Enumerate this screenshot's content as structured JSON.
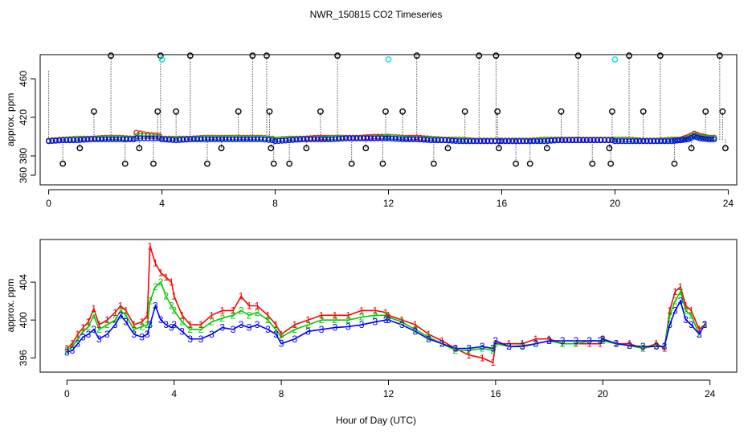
{
  "figure_title": "NWR_150815  CO2 Timeseries",
  "xlabel": "Hour of Day (UTC)",
  "colors": {
    "red": "#ff0000",
    "green": "#00cc00",
    "blue": "#0000ff",
    "black": "#000000",
    "cyan": "#00e5e5"
  },
  "chart_data": [
    {
      "type": "scatter",
      "panel": "top",
      "title": "",
      "ylabel": "approx. ppm",
      "xlim": [
        -0.3,
        24.3
      ],
      "ylim": [
        350,
        485
      ],
      "x_ticks": [
        0,
        4,
        8,
        12,
        16,
        20,
        24
      ],
      "x_tick_labels": [
        "0",
        "4",
        "8",
        "12",
        "16",
        "20",
        "24"
      ],
      "y_ticks": [
        360,
        380,
        420,
        460
      ],
      "y_tick_labels": [
        "360",
        "380",
        "420",
        "460"
      ],
      "baseline_series": [
        {
          "name": "red",
          "color": "#ff0000",
          "x": [
            0.0,
            0.5,
            1.0,
            1.5,
            2.0,
            2.5,
            3.0,
            3.1,
            3.5,
            3.9,
            4.0,
            4.5,
            5.0,
            5.5,
            6.0,
            6.5,
            7.0,
            7.5,
            7.9,
            8.0,
            8.5,
            9.0,
            9.5,
            10.0,
            10.5,
            11.0,
            11.5,
            11.9,
            12.0,
            12.5,
            13.0,
            13.5,
            14.0,
            14.5,
            15.0,
            15.5,
            15.9,
            16.0,
            16.5,
            17.0,
            17.5,
            18.0,
            18.5,
            19.0,
            19.5,
            19.9,
            20.0,
            20.5,
            21.0,
            21.5,
            22.0,
            22.3,
            22.6,
            22.8,
            23.0,
            23.3,
            23.6
          ],
          "y": [
            396,
            397,
            398,
            398,
            399,
            399,
            398,
            404,
            402,
            401,
            398,
            398,
            398,
            399,
            399,
            399,
            399,
            399,
            398,
            397,
            398,
            398,
            399,
            399,
            399,
            399,
            400,
            400,
            400,
            399,
            399,
            398,
            397,
            397,
            396,
            396,
            396,
            396,
            396,
            396,
            397,
            397,
            397,
            397,
            397,
            397,
            397,
            397,
            396,
            396,
            397,
            397,
            400,
            403,
            401,
            399,
            399
          ]
        },
        {
          "name": "green",
          "color": "#00cc00",
          "x": [
            0.0,
            0.5,
            1.0,
            1.5,
            2.0,
            2.5,
            3.0,
            3.1,
            3.5,
            3.9,
            4.0,
            4.5,
            5.0,
            5.5,
            6.0,
            6.5,
            7.0,
            7.5,
            7.9,
            8.0,
            8.5,
            9.0,
            9.5,
            10.0,
            10.5,
            11.0,
            11.5,
            11.9,
            12.0,
            12.5,
            13.0,
            13.5,
            14.0,
            14.5,
            15.0,
            15.5,
            15.9,
            16.0,
            16.5,
            17.0,
            17.5,
            18.0,
            18.5,
            19.0,
            19.5,
            19.9,
            20.0,
            20.5,
            21.0,
            21.5,
            22.0,
            22.3,
            22.6,
            22.8,
            23.0,
            23.3,
            23.6
          ],
          "y": [
            396,
            397,
            398,
            398,
            399,
            399,
            398,
            401,
            401,
            400,
            398,
            398,
            398,
            399,
            399,
            399,
            399,
            399,
            398,
            397,
            398,
            398,
            398,
            399,
            399,
            399,
            399,
            400,
            400,
            399,
            398,
            398,
            397,
            397,
            396,
            396,
            396,
            396,
            396,
            396,
            397,
            397,
            397,
            397,
            397,
            397,
            397,
            397,
            396,
            396,
            397,
            397,
            399,
            402,
            400,
            399,
            399
          ]
        },
        {
          "name": "blue",
          "color": "#0000ff",
          "x": [
            0.0,
            0.5,
            1.0,
            1.5,
            2.0,
            2.5,
            3.0,
            3.1,
            3.5,
            3.9,
            4.0,
            4.5,
            5.0,
            5.5,
            6.0,
            6.5,
            7.0,
            7.5,
            7.9,
            8.0,
            8.5,
            9.0,
            9.5,
            10.0,
            10.5,
            11.0,
            11.5,
            11.9,
            12.0,
            12.5,
            13.0,
            13.5,
            14.0,
            14.5,
            15.0,
            15.5,
            15.9,
            16.0,
            16.5,
            17.0,
            17.5,
            18.0,
            18.5,
            19.0,
            19.5,
            19.9,
            20.0,
            20.5,
            21.0,
            21.5,
            22.0,
            22.3,
            22.6,
            22.8,
            23.0,
            23.3,
            23.6
          ],
          "y": [
            396,
            397,
            397,
            398,
            398,
            398,
            398,
            399,
            399,
            399,
            398,
            397,
            398,
            398,
            398,
            398,
            398,
            398,
            397,
            396,
            397,
            398,
            398,
            398,
            399,
            399,
            399,
            399,
            399,
            398,
            398,
            397,
            397,
            396,
            396,
            396,
            396,
            396,
            396,
            396,
            396,
            397,
            397,
            397,
            397,
            397,
            396,
            396,
            396,
            396,
            396,
            397,
            398,
            401,
            399,
            398,
            398
          ]
        }
      ],
      "spikes": {
        "color": "#000000",
        "x": [
          0.0,
          0.5,
          1.1,
          1.6,
          2.2,
          2.7,
          3.2,
          3.7,
          3.85,
          3.95,
          4.5,
          5.0,
          5.6,
          6.1,
          6.7,
          7.2,
          7.7,
          7.8,
          7.85,
          7.95,
          8.5,
          9.1,
          9.6,
          10.2,
          10.7,
          11.2,
          11.8,
          11.9,
          12.5,
          13.0,
          13.6,
          14.1,
          14.7,
          15.2,
          15.8,
          15.85,
          15.9,
          16.5,
          17.0,
          17.6,
          18.1,
          18.7,
          19.2,
          19.8,
          19.85,
          19.9,
          20.5,
          21.0,
          21.6,
          22.1,
          22.7,
          23.2,
          23.7,
          23.8,
          23.9
        ],
        "y": [
          468,
          372,
          388,
          426,
          484,
          372,
          388,
          372,
          426,
          484,
          426,
          484,
          372,
          388,
          426,
          484,
          484,
          426,
          388,
          372,
          372,
          388,
          426,
          484,
          372,
          388,
          372,
          426,
          426,
          484,
          372,
          388,
          426,
          484,
          484,
          426,
          388,
          372,
          372,
          388,
          426,
          484,
          372,
          388,
          372,
          426,
          484,
          426,
          484,
          372,
          388,
          426,
          484,
          426,
          388
        ],
        "markers": [
          false,
          true,
          true,
          true,
          true,
          true,
          true,
          true,
          true,
          true,
          true,
          true,
          true,
          true,
          true,
          true,
          true,
          true,
          true,
          true,
          true,
          true,
          true,
          true,
          true,
          true,
          true,
          true,
          true,
          true,
          true,
          true,
          true,
          true,
          true,
          true,
          true,
          true,
          true,
          true,
          true,
          true,
          true,
          true,
          true,
          true,
          true,
          true,
          true,
          true,
          true,
          true,
          true,
          true,
          true
        ]
      },
      "cyan_points": {
        "color": "#00e5e5",
        "x": [
          4.0,
          12.0,
          20.0
        ],
        "y": [
          480,
          480,
          480
        ]
      }
    },
    {
      "type": "line",
      "panel": "bottom",
      "title": "",
      "ylabel": "approx. ppm",
      "xlim": [
        -1.0,
        25.0
      ],
      "ylim": [
        394.5,
        408.5
      ],
      "x_ticks": [
        0,
        4,
        8,
        12,
        16,
        20,
        24
      ],
      "x_tick_labels": [
        "0",
        "4",
        "8",
        "12",
        "16",
        "20",
        "24"
      ],
      "y_ticks": [
        396,
        400,
        404
      ],
      "y_tick_labels": [
        "396",
        "400",
        "404"
      ],
      "point_label_series": [
        {
          "name": "1",
          "label": "1",
          "color": "#ff0000",
          "x": [
            0.0,
            0.2,
            0.4,
            0.6,
            0.8,
            1.0,
            1.2,
            1.5,
            1.8,
            2.0,
            2.2,
            2.5,
            2.8,
            3.0,
            3.1,
            3.3,
            3.5,
            3.7,
            3.9,
            4.0,
            4.3,
            4.6,
            5.0,
            5.4,
            5.8,
            6.2,
            6.5,
            6.8,
            7.1,
            7.5,
            7.8,
            8.0,
            8.5,
            9.0,
            9.5,
            10.0,
            10.5,
            11.0,
            11.5,
            11.9,
            12.0,
            12.5,
            13.0,
            13.5,
            14.0,
            14.5,
            15.0,
            15.5,
            15.9,
            16.0,
            16.5,
            17.0,
            17.5,
            18.0,
            18.5,
            19.0,
            19.5,
            19.9,
            20.0,
            20.5,
            21.0,
            21.5,
            22.0,
            22.3,
            22.5,
            22.7,
            22.9,
            23.1,
            23.3,
            23.6,
            23.8
          ],
          "y": [
            397,
            397.5,
            398.5,
            399.2,
            399.8,
            401.2,
            399.5,
            400,
            400.8,
            401.5,
            401,
            399.5,
            399.8,
            400.5,
            407.8,
            406,
            405,
            404.5,
            404,
            402.5,
            400.5,
            399.5,
            399.5,
            400.5,
            401,
            401,
            402.5,
            401.5,
            401.5,
            400.5,
            399.5,
            398.5,
            399.5,
            400,
            400.5,
            400.5,
            400.5,
            401,
            401,
            400.8,
            400.5,
            400,
            399.5,
            398.5,
            397.8,
            397,
            396.3,
            396,
            395.5,
            397.5,
            397.5,
            397.5,
            398,
            398,
            397.5,
            397.5,
            397.5,
            397.5,
            398,
            397.5,
            397.5,
            397,
            397.5,
            397,
            401,
            403,
            403.5,
            401.5,
            401,
            399,
            399.5
          ]
        },
        {
          "name": "2",
          "label": "2",
          "color": "#00cc00",
          "x": [
            0.0,
            0.2,
            0.4,
            0.6,
            0.8,
            1.0,
            1.2,
            1.5,
            1.8,
            2.0,
            2.2,
            2.5,
            2.8,
            3.0,
            3.1,
            3.3,
            3.5,
            3.7,
            3.9,
            4.0,
            4.3,
            4.6,
            5.0,
            5.4,
            5.8,
            6.2,
            6.5,
            6.8,
            7.1,
            7.5,
            7.8,
            8.0,
            8.5,
            9.0,
            9.5,
            10.0,
            10.5,
            11.0,
            11.5,
            11.9,
            12.0,
            12.5,
            13.0,
            13.5,
            14.0,
            14.5,
            15.0,
            15.5,
            15.9,
            16.0,
            16.5,
            17.0,
            17.5,
            18.0,
            18.5,
            19.0,
            19.5,
            19.9,
            20.0,
            20.5,
            21.0,
            21.5,
            22.0,
            22.3,
            22.5,
            22.7,
            22.9,
            23.1,
            23.3,
            23.6,
            23.8
          ],
          "y": [
            396.8,
            397.2,
            398,
            398.8,
            399.3,
            400.5,
            399,
            399.5,
            400,
            401,
            400.5,
            399,
            399.3,
            399.5,
            402,
            403.5,
            404,
            402.5,
            401.5,
            401,
            399.8,
            399,
            399,
            399.8,
            400.2,
            400.5,
            401,
            400.5,
            400.8,
            400,
            399,
            398.2,
            399,
            399.5,
            400,
            400,
            400,
            400.3,
            400.5,
            400.5,
            400.3,
            399.8,
            399,
            398.2,
            397.5,
            396.8,
            396.8,
            397,
            396.8,
            397.5,
            397.2,
            397.3,
            397.5,
            397.8,
            397.5,
            397.5,
            397.8,
            397.8,
            397.8,
            397.5,
            397.3,
            397,
            397.3,
            397.2,
            400.5,
            402,
            403,
            401,
            400.5,
            398.5,
            399.5
          ]
        },
        {
          "name": "3",
          "label": "3",
          "color": "#0000ff",
          "x": [
            0.0,
            0.2,
            0.4,
            0.6,
            0.8,
            1.0,
            1.2,
            1.5,
            1.8,
            2.0,
            2.2,
            2.5,
            2.8,
            3.0,
            3.1,
            3.3,
            3.5,
            3.7,
            3.9,
            4.0,
            4.3,
            4.6,
            5.0,
            5.4,
            5.8,
            6.2,
            6.5,
            6.8,
            7.1,
            7.5,
            7.8,
            8.0,
            8.5,
            9.0,
            9.5,
            10.0,
            10.5,
            11.0,
            11.5,
            11.9,
            12.0,
            12.5,
            13.0,
            13.5,
            14.0,
            14.5,
            15.0,
            15.5,
            15.9,
            16.0,
            16.5,
            17.0,
            17.5,
            18.0,
            18.5,
            19.0,
            19.5,
            19.9,
            20.0,
            20.5,
            21.0,
            21.5,
            22.0,
            22.3,
            22.5,
            22.7,
            22.9,
            23.1,
            23.3,
            23.6,
            23.8
          ],
          "y": [
            396.6,
            396.8,
            397.5,
            398.2,
            398.5,
            399,
            398,
            398.5,
            399.5,
            400.5,
            399.8,
            398.5,
            398.2,
            398.5,
            399.5,
            401.5,
            400,
            399.5,
            399.2,
            399.5,
            398.8,
            398,
            398,
            398.5,
            399.2,
            399,
            399.5,
            399.2,
            399.5,
            399,
            398.5,
            397.5,
            398,
            398.8,
            399,
            399.2,
            399.3,
            399.5,
            399.8,
            400,
            400,
            399.5,
            398.8,
            398,
            397.5,
            397,
            397,
            397.2,
            397,
            397.8,
            397.2,
            397.2,
            397.5,
            397.8,
            397.8,
            397.8,
            397.8,
            397.8,
            398,
            397.5,
            397.3,
            397.2,
            397.2,
            397.2,
            399.5,
            401,
            402,
            400,
            399.5,
            398.5,
            399.5
          ]
        }
      ]
    }
  ]
}
